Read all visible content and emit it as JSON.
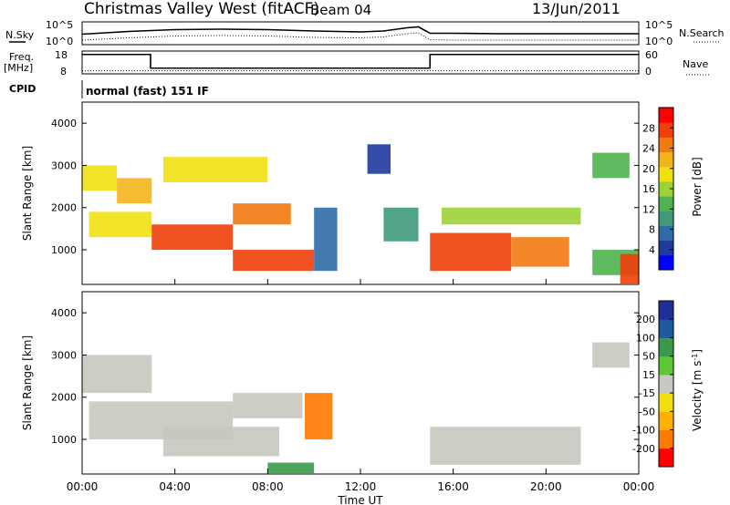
{
  "header": {
    "station": "Christmas Valley West (fitACF)",
    "beam": "Beam 04",
    "date": "13/Jun/2011"
  },
  "left_labels": {
    "nsky": "N.Sky",
    "freq": "Freq.",
    "freq_unit": "[MHz]",
    "cpid": "CPID"
  },
  "right_labels": {
    "nsearch": "N.Search",
    "nave": "Nave"
  },
  "cpid_text": "normal (fast) 151 IF",
  "chart_data": [
    {
      "type": "line",
      "panel": "noise",
      "y_ticks_left": [
        "10^5",
        "10^0"
      ],
      "y_ticks_right": [
        "10^5",
        "10^0"
      ],
      "series": [
        {
          "name": "N.Sky",
          "x": [
            0,
            2,
            4,
            6,
            8,
            10,
            12,
            13,
            14,
            14.5,
            15,
            16,
            18,
            20,
            22,
            24
          ],
          "y": [
            2.3,
            2.9,
            3.3,
            3.4,
            3.3,
            3.0,
            2.8,
            3.0,
            3.7,
            3.9,
            2.5,
            2.5,
            2.4,
            2.4,
            2.4,
            2.4
          ]
        },
        {
          "name": "N.Search",
          "x": [
            0,
            2,
            4,
            6,
            8,
            10,
            12,
            13,
            14,
            14.5,
            15,
            16,
            18,
            20,
            22,
            24
          ],
          "y": [
            1.0,
            1.5,
            1.9,
            2.0,
            1.9,
            1.6,
            1.5,
            1.7,
            2.4,
            2.6,
            1.1,
            1.0,
            1.0,
            1.0,
            1.0,
            1.0
          ]
        }
      ]
    },
    {
      "type": "line",
      "panel": "freq",
      "y_ticks_left": [
        "18",
        "8"
      ],
      "y_ticks_right": [
        "60",
        "0"
      ],
      "series": [
        {
          "name": "Freq.",
          "x": [
            0,
            2.95,
            2.95,
            15,
            15,
            24
          ],
          "y": [
            16.5,
            16.5,
            10.5,
            10.5,
            16.5,
            16.5
          ]
        },
        {
          "name": "Nave",
          "x": [
            0,
            24
          ],
          "y": [
            8,
            8
          ]
        }
      ]
    },
    {
      "type": "heatmap",
      "panel": "power",
      "xlim": [
        0,
        24
      ],
      "ylim": [
        180,
        4500
      ],
      "ylabel": "Slant Range [km]",
      "y_ticks": [
        1000,
        2000,
        3000,
        4000
      ],
      "colorbar": {
        "label": "Power [dB]",
        "ticks": [
          4,
          8,
          12,
          16,
          20,
          24,
          28
        ],
        "range": [
          0,
          32
        ]
      },
      "regions": [
        {
          "t0": 0,
          "t1": 1.5,
          "r0": 2400,
          "r1": 3000,
          "level": 20
        },
        {
          "t0": 1.5,
          "t1": 3,
          "r0": 2100,
          "r1": 2700,
          "level": 22
        },
        {
          "t0": 0.3,
          "t1": 3,
          "r0": 1300,
          "r1": 1900,
          "level": 18
        },
        {
          "t0": 3,
          "t1": 6.5,
          "r0": 1000,
          "r1": 1600,
          "level": 28
        },
        {
          "t0": 6.5,
          "t1": 9,
          "r0": 1600,
          "r1": 2100,
          "level": 24
        },
        {
          "t0": 6.5,
          "t1": 10,
          "r0": 500,
          "r1": 1000,
          "level": 28
        },
        {
          "t0": 3.5,
          "t1": 8,
          "r0": 2600,
          "r1": 3200,
          "level": 20
        },
        {
          "t0": 10,
          "t1": 11,
          "r0": 500,
          "r1": 2000,
          "level": 6
        },
        {
          "t0": 12.3,
          "t1": 13.3,
          "r0": 2800,
          "r1": 3500,
          "level": 4
        },
        {
          "t0": 13,
          "t1": 14.5,
          "r0": 1200,
          "r1": 2000,
          "level": 8
        },
        {
          "t0": 15,
          "t1": 18.5,
          "r0": 500,
          "r1": 1400,
          "level": 30
        },
        {
          "t0": 18.5,
          "t1": 21,
          "r0": 600,
          "r1": 1300,
          "level": 26
        },
        {
          "t0": 15.5,
          "t1": 21.5,
          "r0": 1600,
          "r1": 2000,
          "level": 16
        },
        {
          "t0": 22,
          "t1": 23.6,
          "r0": 2700,
          "r1": 3300,
          "level": 12
        },
        {
          "t0": 22,
          "t1": 24,
          "r0": 400,
          "r1": 1000,
          "level": 14
        },
        {
          "t0": 23.2,
          "t1": 24,
          "r0": 200,
          "r1": 900,
          "level": 29
        }
      ]
    },
    {
      "type": "heatmap",
      "panel": "velocity",
      "xlim": [
        0,
        24
      ],
      "ylim": [
        180,
        4500
      ],
      "ylabel": "Slant Range [km]",
      "xlabel": "Time UT",
      "x_ticks": [
        "00:00",
        "04:00",
        "08:00",
        "12:00",
        "16:00",
        "20:00",
        "00:00"
      ],
      "y_ticks": [
        1000,
        2000,
        3000,
        4000
      ],
      "colorbar": {
        "label": "Velocity [m s^-1]",
        "ticks": [
          200,
          100,
          50,
          15,
          -15,
          -50,
          -100,
          -200
        ],
        "range": [
          -250,
          250
        ]
      },
      "regions": [
        {
          "t0": 0,
          "t1": 3,
          "r0": 2100,
          "r1": 3000,
          "level": 0
        },
        {
          "t0": 0.3,
          "t1": 6.5,
          "r0": 1000,
          "r1": 1900,
          "level": 0
        },
        {
          "t0": 3.5,
          "t1": 8.5,
          "r0": 600,
          "r1": 1300,
          "level": 0
        },
        {
          "t0": 6.5,
          "t1": 9.5,
          "r0": 1500,
          "r1": 2100,
          "level": 0
        },
        {
          "t0": 9.6,
          "t1": 10.8,
          "r0": 1000,
          "r1": 2100,
          "level": -120
        },
        {
          "t0": 15,
          "t1": 21.5,
          "r0": 400,
          "r1": 1300,
          "level": 0
        },
        {
          "t0": 22,
          "t1": 23.6,
          "r0": 2700,
          "r1": 3300,
          "level": 0
        },
        {
          "t0": 8,
          "t1": 10,
          "r0": 200,
          "r1": 450,
          "level": 60
        }
      ]
    }
  ],
  "axis_labels": {
    "ylabel": "Slant Range [km]",
    "xlabel": "Time UT",
    "power_bar": "Power [dB]",
    "velocity_bar_main": "Velocity [m s",
    "velocity_bar_sup": "-1",
    "velocity_bar_end": "]"
  },
  "colors": {
    "power_scale": [
      "#0000ff",
      "#1f3a9e",
      "#2f6ca6",
      "#3f9a7a",
      "#4fb34f",
      "#9cd236",
      "#f0e010",
      "#f4b41c",
      "#f27a0f",
      "#ef3f0a",
      "#ff0000"
    ],
    "velocity_scale": [
      "#ff0000",
      "#ff7a00",
      "#ffb000",
      "#f0e010",
      "#c8c8c0",
      "#5cc838",
      "#3a9a4a",
      "#1f5aa0",
      "#1f2f98"
    ],
    "frame": "#000000"
  }
}
